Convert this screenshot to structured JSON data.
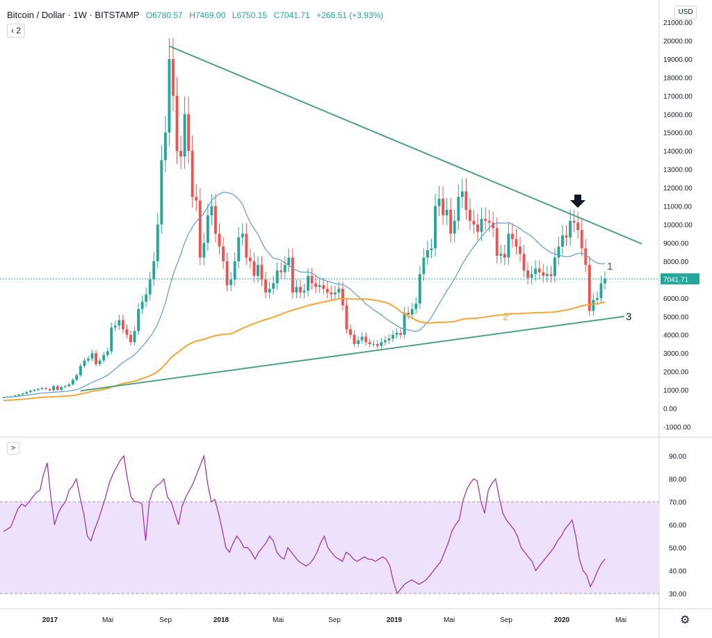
{
  "header": {
    "symbol": "Bitcoin / Dollar · 1W · BITSTAMP",
    "open": "O6780.57",
    "high": "H7469.00",
    "low": "L6750.15",
    "close": "C7041.71",
    "change": "+266.51 (+3.93%)",
    "collapse_label": "2",
    "indicator_toggle": ">"
  },
  "currency_label": "USD",
  "last_price_label": "7041.71",
  "colors": {
    "up": "#26a69a",
    "down": "#ef5350",
    "ma_blue": "#5b9bd5",
    "ma_orange": "#f7a535",
    "trend": "#4aa37e",
    "rsi": "#9c27b0",
    "rsi_band": "#ede1fb",
    "price_line": "#26a69a"
  },
  "annotations": {
    "label_1": "1",
    "label_2": "2",
    "label_3": "3",
    "arrow": "down-arrow"
  },
  "chart_data": [
    {
      "type": "candlestick",
      "title": "Bitcoin / Dollar 1W BITSTAMP",
      "ylim": [
        -1000,
        21000
      ],
      "y_ticks": [
        "21000.00",
        "20000.00",
        "19000.00",
        "18000.00",
        "17000.00",
        "16000.00",
        "15000.00",
        "14000.00",
        "13000.00",
        "12000.00",
        "11000.00",
        "10000.00",
        "9000.00",
        "8000.00",
        "7000.00",
        "6000.00",
        "5000.00",
        "4000.00",
        "3000.00",
        "2000.00",
        "1000.00",
        "0.00",
        "-1000.00"
      ],
      "x_ticks": [
        "2017",
        "Mai",
        "Sep",
        "2018",
        "Mai",
        "Sep",
        "2019",
        "Mai",
        "Sep",
        "2020",
        "Mai"
      ],
      "closes": [
        600,
        620,
        650,
        700,
        750,
        800,
        880,
        950,
        1000,
        1050,
        1100,
        1050,
        980,
        1200,
        1000,
        1150,
        1200,
        1300,
        1550,
        1800,
        2300,
        2600,
        2700,
        3000,
        2400,
        2600,
        2900,
        3100,
        4400,
        4500,
        4800,
        4300,
        4000,
        3600,
        4200,
        5400,
        5800,
        6200,
        7000,
        8000,
        10000,
        13500,
        15000,
        19000,
        17000,
        14000,
        13700,
        16000,
        14000,
        11500,
        11300,
        8200,
        9000,
        10500,
        11000,
        9500,
        8800,
        8000,
        6700,
        7000,
        8000,
        9300,
        9500,
        8200,
        8000,
        7200,
        7800,
        7000,
        6300,
        6500,
        6800,
        7500,
        7400,
        7800,
        8200,
        6300,
        6600,
        6300,
        6400,
        7200,
        6800,
        6600,
        6700,
        6500,
        6300,
        6200,
        6300,
        6500,
        5600,
        4300,
        4000,
        3500,
        3700,
        3900,
        3600,
        3500,
        3500,
        3400,
        3600,
        3700,
        3800,
        4000,
        4100,
        4000,
        5200,
        5100,
        5400,
        5700,
        7300,
        8200,
        8600,
        8700,
        11000,
        11400,
        10500,
        10800,
        9500,
        10200,
        11500,
        11800,
        10800,
        10200,
        10000,
        9600,
        10300,
        10200,
        10100,
        9800,
        8300,
        8400,
        8200,
        9500,
        9200,
        8800,
        8400,
        7500,
        7100,
        7300,
        7600,
        7400,
        7200,
        7300,
        7200,
        8200,
        8800,
        9400,
        9300,
        10200,
        10100,
        9700,
        8700,
        7800,
        5300,
        5900,
        6000,
        6800,
        7041
      ],
      "series_labels": [
        "1",
        "2",
        "3"
      ],
      "last_price": 7041.71
    },
    {
      "type": "line",
      "title": "RSI",
      "ylim": [
        25,
        95
      ],
      "y_ticks": [
        "90.00",
        "80.00",
        "70.00",
        "60.00",
        "50.00",
        "40.00",
        "30.00"
      ],
      "band": [
        30,
        70
      ],
      "values": [
        57,
        58,
        59,
        63,
        67,
        69,
        68,
        70,
        72,
        74,
        75,
        82,
        87,
        72,
        60,
        65,
        68,
        70,
        75,
        77,
        80,
        72,
        65,
        55,
        53,
        58,
        62,
        67,
        72,
        78,
        82,
        85,
        88,
        90,
        80,
        72,
        70,
        70,
        69,
        53,
        70,
        75,
        77,
        78,
        80,
        72,
        70,
        65,
        60,
        68,
        72,
        75,
        78,
        82,
        86,
        90,
        78,
        70,
        71,
        65,
        58,
        50,
        48,
        52,
        55,
        53,
        50,
        50,
        48,
        45,
        48,
        50,
        52,
        55,
        53,
        48,
        46,
        45,
        50,
        48,
        46,
        44,
        43,
        42,
        43,
        45,
        48,
        52,
        55,
        50,
        48,
        46,
        45,
        44,
        48,
        47,
        45,
        44,
        45,
        46,
        45,
        45,
        44,
        45,
        46,
        45,
        42,
        35,
        30,
        32,
        34,
        35,
        36,
        35,
        34,
        35,
        36,
        38,
        40,
        42,
        44,
        48,
        52,
        57,
        60,
        62,
        70,
        75,
        78,
        80,
        79,
        70,
        65,
        75,
        78,
        80,
        72,
        65,
        62,
        60,
        58,
        55,
        50,
        48,
        46,
        44,
        40,
        42,
        44,
        46,
        48,
        50,
        53,
        55,
        58,
        60,
        62,
        55,
        45,
        40,
        38,
        33,
        36,
        40,
        43,
        45
      ]
    }
  ]
}
